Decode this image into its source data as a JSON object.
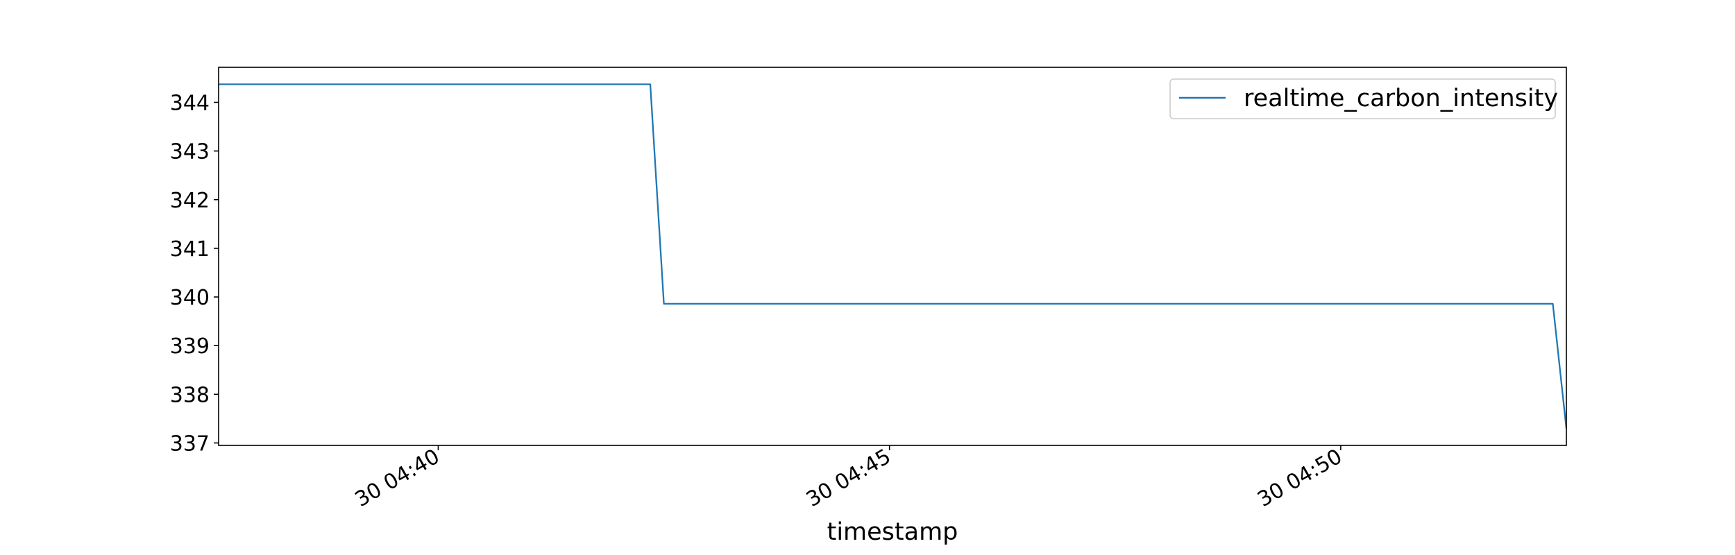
{
  "chart_data": {
    "type": "line",
    "title": "",
    "xlabel": "timestamp",
    "ylabel": "",
    "x": [
      "04:37:34",
      "04:42:21",
      "04:42:30",
      "04:52:21",
      "04:52:30"
    ],
    "xlim": [
      "04:37:34",
      "04:52:30"
    ],
    "ylim": [
      336.95,
      344.72
    ],
    "x_ticks": [
      {
        "time": "04:40",
        "label": "30 04:40"
      },
      {
        "time": "04:45",
        "label": "30 04:45"
      },
      {
        "time": "04:50",
        "label": "30 04:50"
      }
    ],
    "y_ticks": [
      337,
      338,
      339,
      340,
      341,
      342,
      343,
      344
    ],
    "series": [
      {
        "name": "realtime_carbon_intensity",
        "color": "#1f77b4",
        "values": [
          344.37,
          344.37,
          339.86,
          339.86,
          337.3
        ]
      }
    ],
    "legend": "top-right",
    "grid": false
  }
}
